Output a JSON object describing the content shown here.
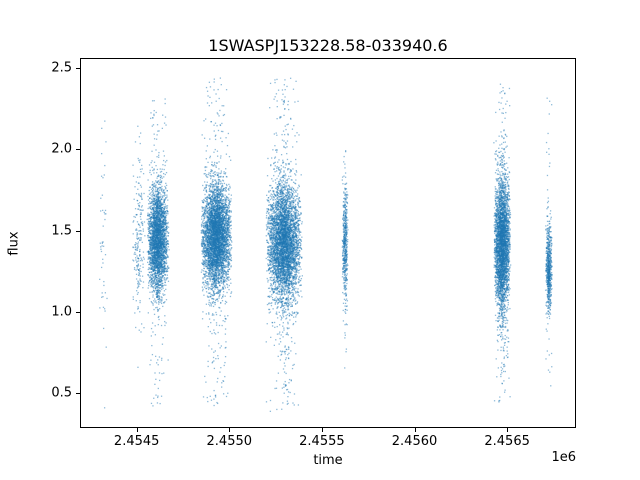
{
  "figure": {
    "title": "1SWASPJ153228.58-033940.6",
    "xlabel": "time",
    "ylabel": "flux",
    "offset_text": "1e6",
    "background": "#ffffff"
  },
  "chart_data": {
    "type": "scatter",
    "title": "1SWASPJ153228.58-033940.6",
    "xlabel": "time",
    "ylabel": "flux",
    "x_offset_label": "1e6",
    "marker_color": "#1f77b4",
    "marker_alpha": 0.5,
    "marker_size_px": 1.3,
    "grid": false,
    "legend": "none",
    "xlim": [
      2454194,
      2456861
    ],
    "ylim": [
      0.3,
      2.56
    ],
    "xticks": {
      "values": [
        2454500,
        2455000,
        2455500,
        2456000,
        2456500
      ],
      "labels": [
        "2.4545",
        "2.4550",
        "2.4555",
        "2.4560",
        "2.4565"
      ]
    },
    "yticks": {
      "values": [
        0.5,
        1.0,
        1.5,
        2.0,
        2.5
      ],
      "labels": [
        "0.5",
        "1.0",
        "1.5",
        "2.0",
        "2.5"
      ]
    },
    "clusters": [
      {
        "x_center": 2454315,
        "x_spread": 22,
        "n": 40,
        "y_mean": 1.5,
        "y_std": 0.33,
        "n_out": 6,
        "y_out_min": 0.85,
        "y_out_max": 2.33
      },
      {
        "x_center": 2454505,
        "x_spread": 35,
        "n": 200,
        "y_mean": 1.45,
        "y_std": 0.25,
        "n_out": 10,
        "y_out_min": 0.6,
        "y_out_max": 2.1
      },
      {
        "x_center": 2454610,
        "x_spread": 60,
        "n": 2800,
        "y_mean": 1.45,
        "y_std": 0.16,
        "n_out": 160,
        "y_out_min": 0.42,
        "y_out_max": 2.32
      },
      {
        "x_center": 2454925,
        "x_spread": 85,
        "n": 4200,
        "y_mean": 1.47,
        "y_std": 0.16,
        "n_out": 260,
        "y_out_min": 0.43,
        "y_out_max": 2.45
      },
      {
        "x_center": 2455290,
        "x_spread": 100,
        "n": 4200,
        "y_mean": 1.43,
        "y_std": 0.18,
        "n_out": 320,
        "y_out_min": 0.38,
        "y_out_max": 2.45
      },
      {
        "x_center": 2455620,
        "x_spread": 16,
        "n": 450,
        "y_mean": 1.45,
        "y_std": 0.17,
        "n_out": 40,
        "y_out_min": 0.75,
        "y_out_max": 2.02
      },
      {
        "x_center": 2456468,
        "x_spread": 46,
        "n": 3200,
        "y_mean": 1.42,
        "y_std": 0.2,
        "n_out": 240,
        "y_out_min": 0.45,
        "y_out_max": 2.42
      },
      {
        "x_center": 2456720,
        "x_spread": 18,
        "n": 600,
        "y_mean": 1.28,
        "y_std": 0.13,
        "n_out": 40,
        "y_out_min": 0.55,
        "y_out_max": 2.35
      }
    ]
  }
}
